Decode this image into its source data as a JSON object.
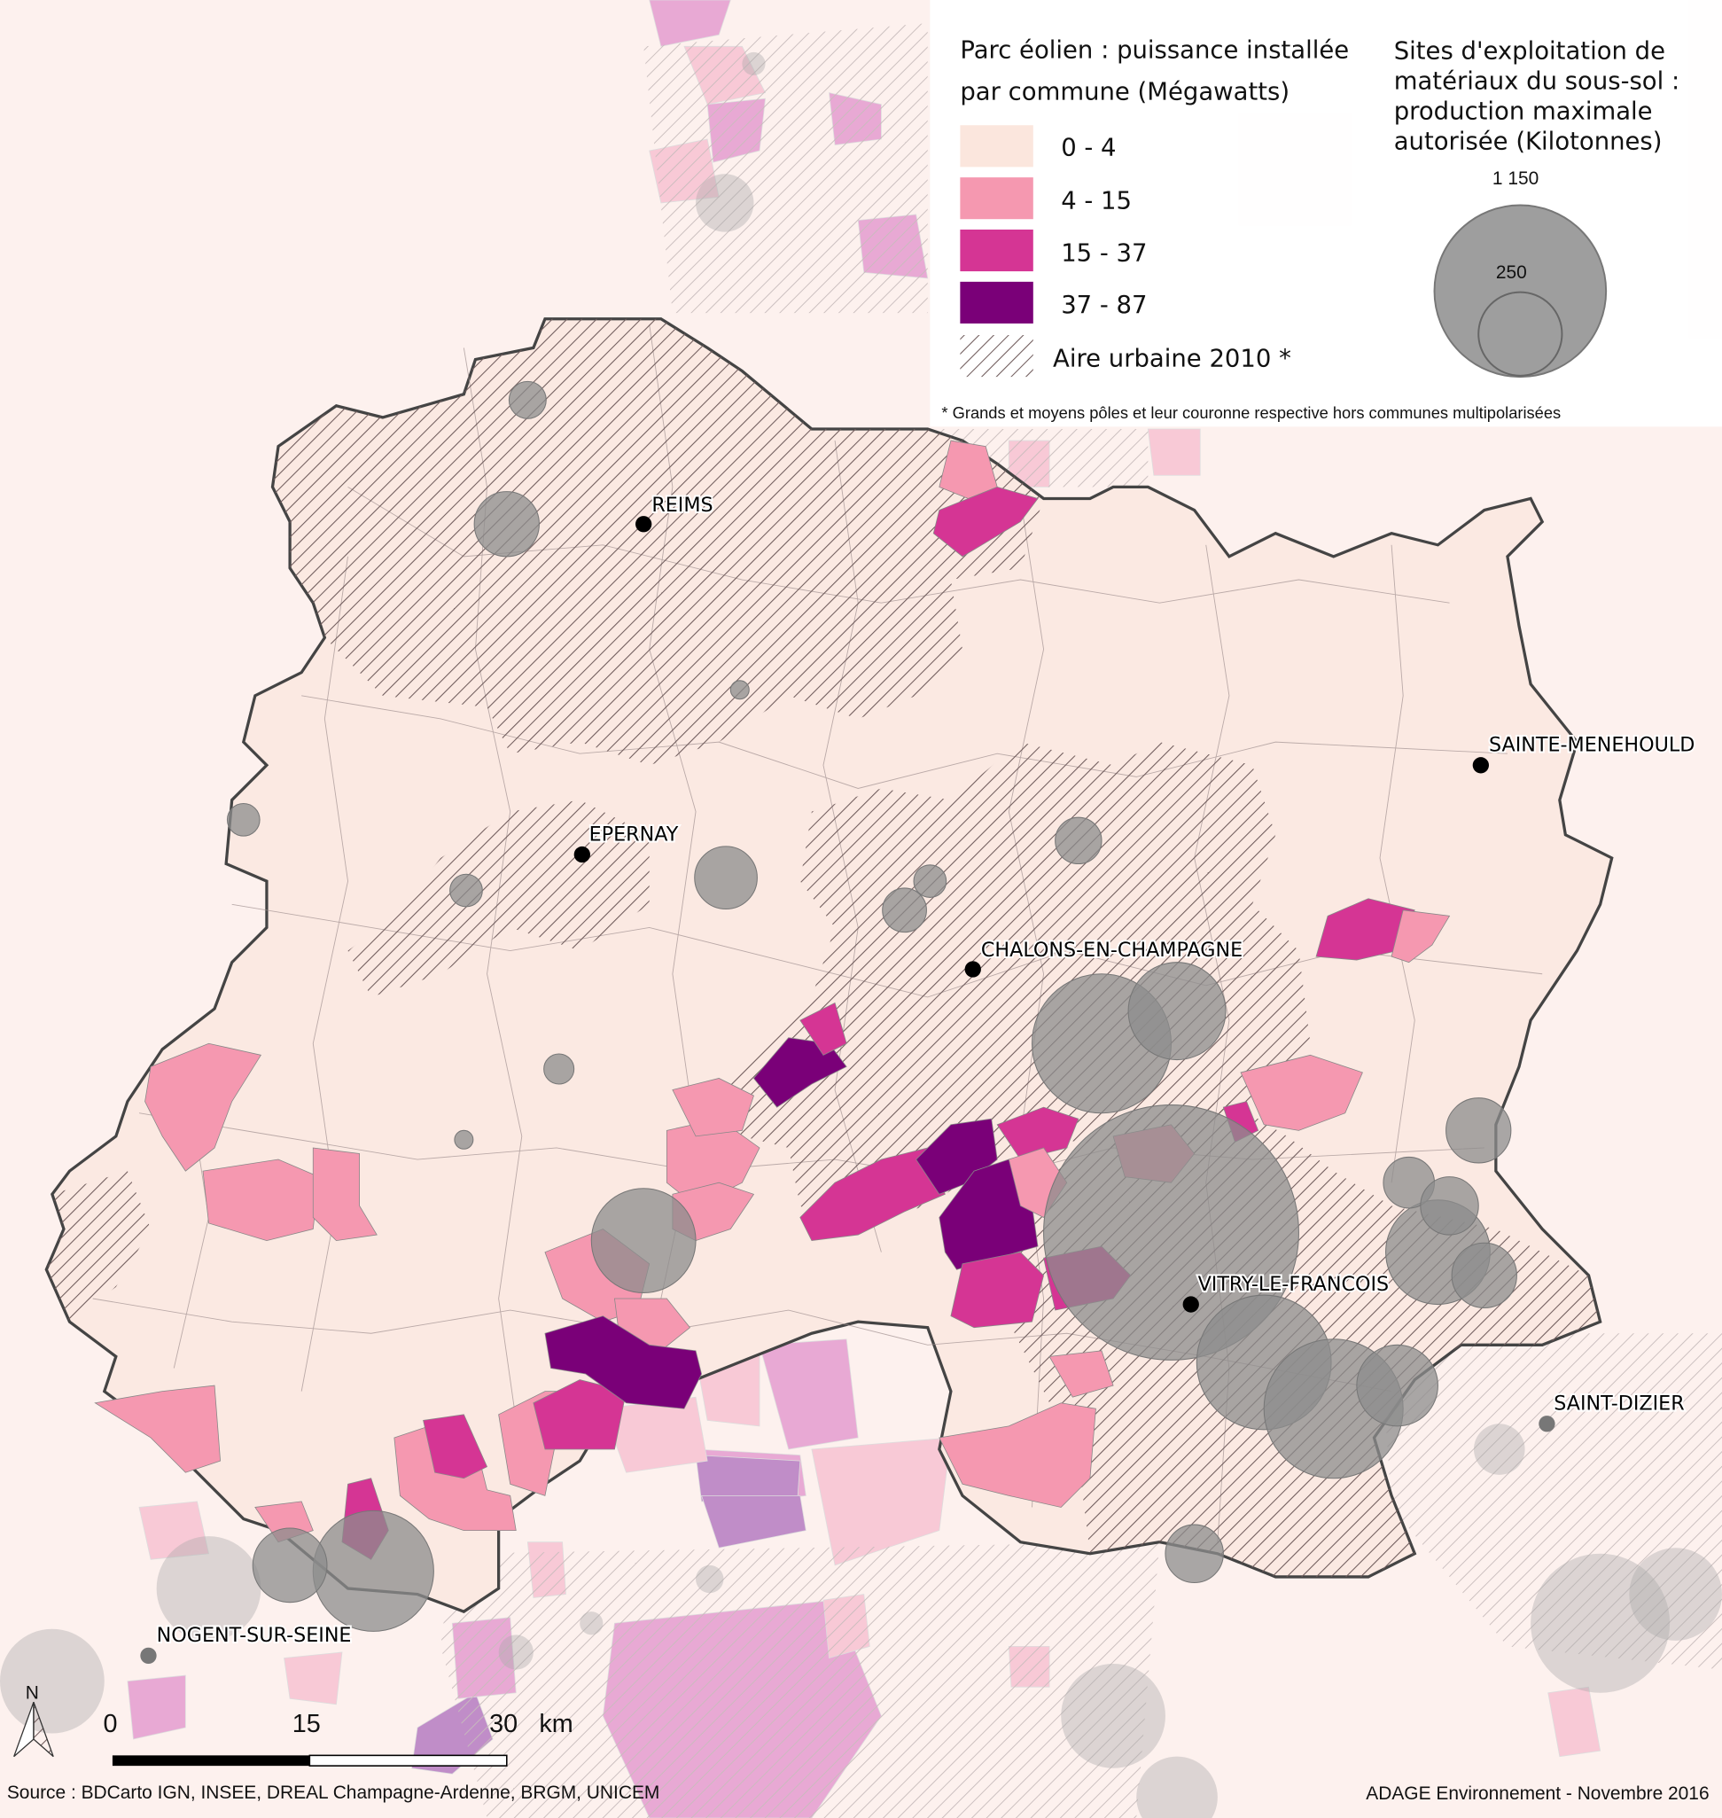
{
  "legend": {
    "wind": {
      "title_line1": "Parc éolien : puissance installée",
      "title_line2": "par commune (Mégawatts)",
      "classes": [
        {
          "label": "0 - 4",
          "color": "#fbe6dd"
        },
        {
          "label": "4 - 15",
          "color": "#f598b0"
        },
        {
          "label": "15 - 37",
          "color": "#d53594"
        },
        {
          "label": "37 - 87",
          "color": "#7a0078"
        }
      ],
      "hatch_label": "Aire urbaine 2010 *",
      "footnote": "* Grands et moyens pôles et leur couronne respective hors communes multipolarisées"
    },
    "sites": {
      "title_lines": [
        "Sites d'exploitation de",
        "matériaux du sous-sol :",
        "production maximale",
        "autorisée (Kilotonnes)"
      ],
      "values": [
        "1 150",
        "250"
      ],
      "color": "#9e9e9e"
    }
  },
  "cities": [
    "REIMS",
    "SAINTE-MENEHOULD",
    "EPERNAY",
    "CHALONS-EN-CHAMPAGNE",
    "VITRY-LE-FRANCOIS",
    "SAINT-DIZIER",
    "NOGENT-SUR-SEINE"
  ],
  "north_arrow": "N",
  "scale": {
    "labels": [
      "0",
      "15",
      "30"
    ],
    "unit": "km"
  },
  "source": "Source : BDCarto IGN, INSEE, DREAL Champagne-Ardenne, BRGM, UNICEM",
  "credit": "ADAGE Environnement - Novembre 2016"
}
